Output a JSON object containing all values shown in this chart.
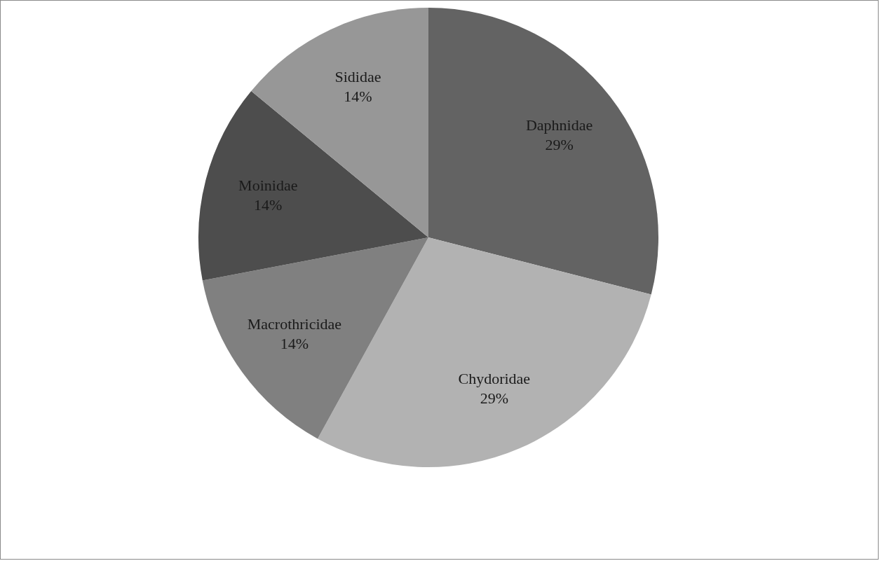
{
  "chart_data": {
    "type": "pie",
    "categories": [
      "Daphnidae",
      "Chydoridae",
      "Macrothricidae",
      "Moinidae",
      "Sididae"
    ],
    "values": [
      29,
      29,
      14,
      14,
      14
    ],
    "colors": [
      "#636363",
      "#b2b2b2",
      "#808080",
      "#4d4d4d",
      "#979797"
    ],
    "value_labels": [
      "29%",
      "29%",
      "14%",
      "14%",
      "14%"
    ],
    "legend": false
  }
}
